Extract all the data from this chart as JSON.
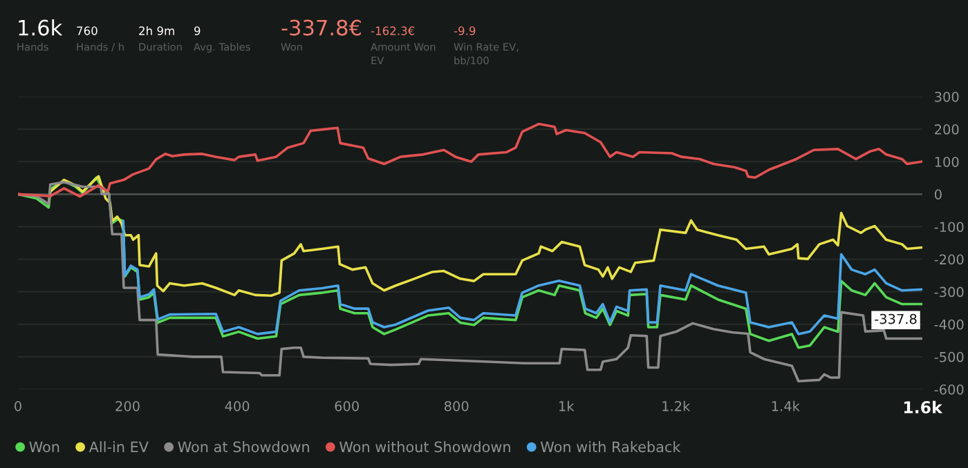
{
  "chart_data": {
    "type": "line",
    "annotations": [
      "1.6k",
      "Hands",
      "760",
      "Hands / h",
      "2h 9m",
      "Duration",
      "9",
      "Avg. Tables",
      "-337.8€",
      "Won",
      "-162.3€",
      "Amount Won\nEV",
      "-9.9",
      "Win Rate EV,\nbb/100",
      {
        "text": "-337.8",
        "x": 1648,
        "y": -337.8
      }
    ],
    "xlim": [
      0,
      1650
    ],
    "xticks": [
      0,
      200,
      400,
      600,
      800,
      {
        "value": 1000,
        "label": "1k"
      },
      {
        "value": 1200,
        "label": "1.2k"
      },
      {
        "value": 1400,
        "label": "1.4k"
      },
      {
        "value": 1650,
        "label": "1.6k"
      }
    ],
    "ylim": [
      -600,
      300
    ],
    "yticks": [
      -600,
      -500,
      -400,
      -300,
      -200,
      -100,
      0,
      100,
      200,
      300
    ],
    "grid": "y",
    "legend": "bottom",
    "marker": "none",
    "line_style": "solid",
    "series": [
      {
        "name": "Won",
        "color": "#57d957",
        "x": [
          0,
          34,
          56,
          59,
          84,
          105,
          118,
          143,
          151,
          166,
          171,
          183,
          192,
          195,
          206,
          218,
          222,
          239,
          248,
          255,
          277,
          319,
          361,
          374,
          403,
          437,
          471,
          479,
          513,
          555,
          584,
          588,
          614,
          639,
          647,
          668,
          689,
          748,
          786,
          807,
          832,
          849,
          908,
          920,
          950,
          979,
          987,
          1025,
          1035,
          1055,
          1067,
          1080,
          1092,
          1113,
          1116,
          1147,
          1150,
          1166,
          1172,
          1218,
          1228,
          1277,
          1328,
          1336,
          1370,
          1412,
          1424,
          1445,
          1471,
          1496,
          1502,
          1521,
          1546,
          1563,
          1584,
          1613,
          1648
        ],
        "values": [
          0,
          -13,
          -41,
          16,
          41,
          23,
          4,
          51,
          27,
          1,
          -90,
          -76,
          -83,
          -253,
          -225,
          -239,
          -324,
          -317,
          -303,
          -395,
          -380,
          -380,
          -380,
          -437,
          -423,
          -444,
          -437,
          -338,
          -310,
          -303,
          -296,
          -352,
          -366,
          -366,
          -409,
          -430,
          -416,
          -373,
          -366,
          -395,
          -402,
          -380,
          -387,
          -317,
          -296,
          -310,
          -281,
          -296,
          -366,
          -380,
          -352,
          -402,
          -359,
          -373,
          -310,
          -307,
          -409,
          -409,
          -310,
          -324,
          -281,
          -324,
          -352,
          -430,
          -451,
          -430,
          -472,
          -465,
          -409,
          -423,
          -267,
          -296,
          -310,
          -274,
          -317,
          -338,
          -337.8
        ]
      },
      {
        "name": "All-in EV",
        "color": "#e8e04a",
        "x": [
          56,
          59,
          84,
          105,
          118,
          147,
          160,
          168,
          172,
          181,
          189,
          195,
          206,
          210,
          220,
          222,
          239,
          252,
          254,
          265,
          277,
          303,
          336,
          361,
          395,
          403,
          433,
          462,
          477,
          481,
          504,
          516,
          521,
          555,
          584,
          587,
          610,
          634,
          647,
          668,
          689,
          723,
          756,
          777,
          807,
          832,
          849,
          908,
          920,
          950,
          954,
          975,
          992,
          1025,
          1034,
          1059,
          1067,
          1076,
          1084,
          1097,
          1118,
          1126,
          1160,
          1172,
          1218,
          1228,
          1239,
          1277,
          1311,
          1328,
          1361,
          1370,
          1412,
          1422,
          1424,
          1441,
          1462,
          1487,
          1496,
          1502,
          1513,
          1538,
          1546,
          1563,
          1584,
          1613,
          1622,
          1648
        ],
        "values": [
          -30,
          8,
          44,
          27,
          8,
          55,
          -13,
          -27,
          -83,
          -69,
          -90,
          -126,
          -126,
          -140,
          -126,
          -218,
          -222,
          -182,
          -281,
          -298,
          -274,
          -281,
          -274,
          -288,
          -310,
          -296,
          -310,
          -312,
          -303,
          -204,
          -182,
          -154,
          -175,
          -168,
          -161,
          -215,
          -232,
          -225,
          -274,
          -296,
          -281,
          -260,
          -239,
          -236,
          -260,
          -267,
          -246,
          -246,
          -204,
          -182,
          -161,
          -175,
          -147,
          -161,
          -218,
          -232,
          -253,
          -225,
          -260,
          -225,
          -239,
          -211,
          -204,
          -109,
          -119,
          -81,
          -109,
          -126,
          -140,
          -168,
          -161,
          -185,
          -168,
          -154,
          -197,
          -199,
          -154,
          -140,
          -157,
          -58,
          -98,
          -119,
          -109,
          -98,
          -140,
          -154,
          -168,
          -164
        ]
      },
      {
        "name": "Won at Showdown",
        "color": "#8c8c8c",
        "x": [
          0,
          34,
          56,
          59,
          84,
          118,
          151,
          153,
          166,
          172,
          189,
          193,
          218,
          222,
          252,
          255,
          319,
          371,
          374,
          441,
          445,
          477,
          481,
          504,
          516,
          521,
          555,
          639,
          643,
          681,
          731,
          735,
          857,
          924,
          988,
          992,
          1034,
          1039,
          1063,
          1067,
          1092,
          1113,
          1118,
          1147,
          1150,
          1168,
          1172,
          1202,
          1231,
          1269,
          1303,
          1332,
          1336,
          1361,
          1412,
          1424,
          1462,
          1471,
          1483,
          1498,
          1502,
          1542,
          1546,
          1580,
          1584,
          1648
        ],
        "values": [
          0,
          -6,
          -30,
          30,
          37,
          23,
          23,
          1,
          1,
          -123,
          -123,
          -288,
          -288,
          -387,
          -387,
          -493,
          -500,
          -500,
          -547,
          -550,
          -557,
          -557,
          -476,
          -472,
          -472,
          -500,
          -503,
          -505,
          -522,
          -525,
          -522,
          -507,
          -515,
          -520,
          -520,
          -476,
          -479,
          -540,
          -540,
          -515,
          -507,
          -472,
          -434,
          -436,
          -533,
          -533,
          -436,
          -422,
          -397,
          -415,
          -425,
          -429,
          -486,
          -507,
          -528,
          -575,
          -571,
          -554,
          -564,
          -564,
          -363,
          -373,
          -422,
          -419,
          -444,
          -444
        ]
      },
      {
        "name": "Won without Showdown",
        "color": "#e05252",
        "x": [
          0,
          34,
          59,
          84,
          113,
          147,
          164,
          168,
          193,
          210,
          239,
          252,
          269,
          282,
          303,
          336,
          361,
          395,
          403,
          433,
          437,
          471,
          492,
          521,
          534,
          555,
          583,
          588,
          630,
          639,
          668,
          698,
          739,
          777,
          798,
          827,
          840,
          891,
          908,
          920,
          950,
          979,
          983,
          1000,
          1034,
          1063,
          1080,
          1092,
          1122,
          1134,
          1193,
          1210,
          1244,
          1269,
          1307,
          1328,
          1332,
          1345,
          1370,
          1420,
          1452,
          1496,
          1529,
          1555,
          1571,
          1584,
          1613,
          1622,
          1648
        ],
        "values": [
          0,
          -3,
          -6,
          18,
          -7,
          27,
          8,
          33,
          44,
          61,
          79,
          107,
          124,
          117,
          122,
          124,
          115,
          105,
          115,
          122,
          103,
          115,
          143,
          157,
          195,
          199,
          204,
          157,
          143,
          110,
          93,
          115,
          122,
          136,
          115,
          100,
          122,
          129,
          143,
          192,
          216,
          207,
          185,
          197,
          188,
          160,
          115,
          129,
          115,
          129,
          126,
          115,
          108,
          93,
          83,
          72,
          54,
          51,
          75,
          108,
          136,
          139,
          108,
          132,
          139,
          122,
          108,
          93,
          100
        ]
      },
      {
        "name": "Won with Rakeback",
        "color": "#4ba6e8",
        "x": [
          192,
          195,
          206,
          218,
          222,
          239,
          248,
          255,
          277,
          361,
          374,
          403,
          437,
          471,
          479,
          513,
          555,
          584,
          588,
          614,
          639,
          647,
          668,
          689,
          748,
          786,
          807,
          832,
          849,
          908,
          920,
          950,
          987,
          1025,
          1035,
          1055,
          1067,
          1080,
          1092,
          1113,
          1116,
          1147,
          1150,
          1166,
          1172,
          1218,
          1228,
          1277,
          1328,
          1336,
          1370,
          1412,
          1424,
          1445,
          1471,
          1496,
          1502,
          1521,
          1546,
          1563,
          1584,
          1613,
          1648
        ],
        "values": [
          -83,
          -250,
          -220,
          -232,
          -317,
          -308,
          -293,
          -385,
          -370,
          -368,
          -423,
          -409,
          -430,
          -423,
          -328,
          -296,
          -289,
          -281,
          -338,
          -352,
          -352,
          -394,
          -409,
          -401,
          -358,
          -349,
          -380,
          -387,
          -366,
          -373,
          -303,
          -281,
          -266,
          -281,
          -352,
          -366,
          -338,
          -394,
          -346,
          -359,
          -296,
          -293,
          -394,
          -394,
          -281,
          -296,
          -246,
          -281,
          -303,
          -394,
          -409,
          -394,
          -430,
          -422,
          -373,
          -383,
          -185,
          -232,
          -246,
          -232,
          -274,
          -296,
          -293
        ]
      }
    ]
  }
}
